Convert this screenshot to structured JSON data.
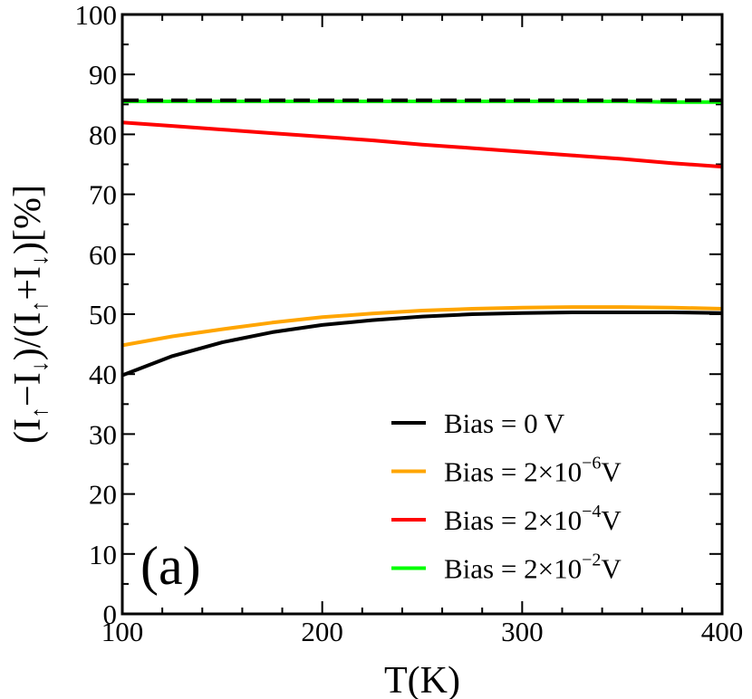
{
  "chart_data": {
    "type": "line",
    "title": "",
    "panel_label": "(a)",
    "xlabel": "T(K)",
    "ylabel": {
      "parts": [
        "(I",
        "↑",
        "−I",
        "↓",
        ")/(I",
        "↑",
        "+I",
        "↓",
        ")[%]"
      ]
    },
    "xlim": [
      100,
      400
    ],
    "ylim": [
      0,
      100
    ],
    "x_major_ticks": [
      100,
      200,
      300,
      400
    ],
    "x_tick_labels": [
      "100",
      "200",
      "300",
      "400"
    ],
    "y_major_ticks": [
      0,
      10,
      20,
      30,
      40,
      50,
      60,
      70,
      80,
      90,
      100
    ],
    "y_tick_labels": [
      "0",
      "10",
      "20",
      "30",
      "40",
      "50",
      "60",
      "70",
      "80",
      "90",
      "100"
    ],
    "grid": false,
    "legend_position": "bottom-right",
    "x": [
      100,
      125,
      150,
      175,
      200,
      225,
      250,
      275,
      300,
      325,
      350,
      375,
      400
    ],
    "series": [
      {
        "name": "Bias = 0 V",
        "legend": {
          "prefix": "Bias = 0 V",
          "exponent": "",
          "suffix": ""
        },
        "color": "#000000",
        "dashed": false,
        "values": [
          39.8,
          43.0,
          45.3,
          47.0,
          48.2,
          49.0,
          49.6,
          50.0,
          50.2,
          50.3,
          50.3,
          50.3,
          50.2
        ]
      },
      {
        "name": "Bias = 2×10−6V",
        "legend": {
          "prefix": "Bias = 2×10",
          "exponent": "−6",
          "suffix": "V"
        },
        "color": "#ffa500",
        "dashed": false,
        "values": [
          44.8,
          46.3,
          47.5,
          48.6,
          49.5,
          50.1,
          50.6,
          50.9,
          51.1,
          51.2,
          51.2,
          51.1,
          50.9
        ]
      },
      {
        "name": "Bias = 2×10−4V",
        "legend": {
          "prefix": "Bias = 2×10",
          "exponent": "−4",
          "suffix": "V"
        },
        "color": "#ff0000",
        "dashed": false,
        "values": [
          82.0,
          81.4,
          80.8,
          80.2,
          79.6,
          79.0,
          78.3,
          77.7,
          77.1,
          76.5,
          75.9,
          75.2,
          74.6
        ]
      },
      {
        "name": "Bias = 2×10−2V",
        "legend": {
          "prefix": "Bias = 2×10",
          "exponent": "−2",
          "suffix": "V"
        },
        "color": "#00ff00",
        "dashed": false,
        "values": [
          85.5,
          85.5,
          85.5,
          85.5,
          85.5,
          85.5,
          85.5,
          85.5,
          85.5,
          85.5,
          85.5,
          85.4,
          85.4
        ]
      },
      {
        "name": "reference (dashed black)",
        "legend": null,
        "color": "#000000",
        "dashed": true,
        "values": [
          85.7,
          85.7,
          85.7,
          85.7,
          85.7,
          85.7,
          85.7,
          85.7,
          85.7,
          85.7,
          85.7,
          85.7,
          85.7
        ]
      }
    ]
  }
}
